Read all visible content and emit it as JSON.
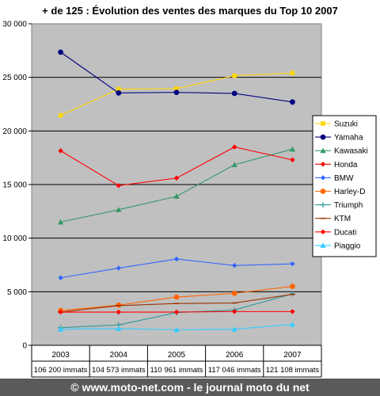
{
  "chart_data": {
    "type": "line",
    "title": "+ de 125 : Évolution des ventes des marques du Top 10 2007",
    "categories": [
      "2003",
      "2004",
      "2005",
      "2006",
      "2007"
    ],
    "subcategories": [
      "106 200 immats",
      "104 573 immats",
      "110 961 immats",
      "117 046 immats",
      "121 108 immats"
    ],
    "ylim": [
      0,
      30000
    ],
    "yticks": [
      "0",
      "5 000",
      "10 000",
      "15 000",
      "20 000",
      "25 000",
      "30 000"
    ],
    "ytick_values": [
      0,
      5000,
      10000,
      15000,
      20000,
      25000,
      30000
    ],
    "grid": true,
    "legend_position": "right",
    "series": [
      {
        "name": "Suzuki",
        "color": "#FFD700",
        "marker": "square",
        "values": [
          21450,
          23900,
          23950,
          25150,
          25400
        ]
      },
      {
        "name": "Yamaha",
        "color": "#000080",
        "marker": "circle",
        "values": [
          27350,
          23550,
          23600,
          23500,
          22700
        ]
      },
      {
        "name": "Kawasaki",
        "color": "#339966",
        "marker": "triangle",
        "values": [
          11500,
          12650,
          13900,
          16850,
          18300
        ]
      },
      {
        "name": "Honda",
        "color": "#FF0000",
        "marker": "diamond",
        "values": [
          18150,
          14900,
          15600,
          18500,
          17300
        ]
      },
      {
        "name": "BMW",
        "color": "#3366FF",
        "marker": "diamond",
        "values": [
          6300,
          7200,
          8050,
          7450,
          7600
        ]
      },
      {
        "name": "Harley-D",
        "color": "#FF6600",
        "marker": "circle",
        "values": [
          3250,
          3750,
          4500,
          4850,
          5500
        ]
      },
      {
        "name": "Triumph",
        "color": "#339999",
        "marker": "plus",
        "values": [
          1650,
          1900,
          3050,
          3300,
          4800
        ]
      },
      {
        "name": "KTM",
        "color": "#993300",
        "marker": "dash",
        "values": [
          3100,
          3700,
          3900,
          3950,
          4750
        ]
      },
      {
        "name": "Ducati",
        "color": "#FF0000",
        "marker": "diamond",
        "values": [
          3100,
          3100,
          3100,
          3150,
          3150
        ]
      },
      {
        "name": "Piaggio",
        "color": "#33CCFF",
        "marker": "triangle",
        "values": [
          1500,
          1550,
          1450,
          1500,
          1950
        ]
      }
    ]
  },
  "footer": {
    "text": "© www.moto-net.com - le journal moto du net"
  }
}
